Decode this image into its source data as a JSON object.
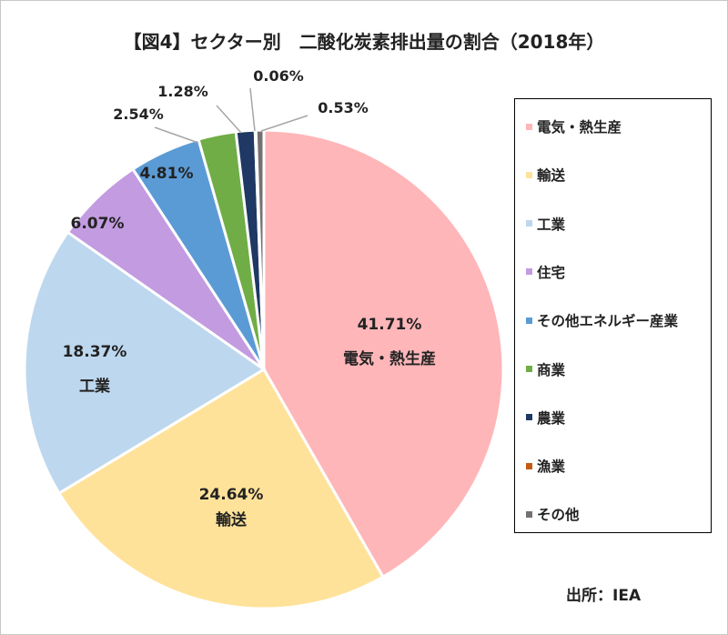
{
  "title": "【図4】セクター別　二酸化炭素排出量の割合（2018年）",
  "source": "出所：IEA",
  "chart_data": {
    "type": "pie",
    "title": "【図4】セクター別　二酸化炭素排出量の割合（2018年）",
    "legend_position": "right",
    "slices": [
      {
        "label": "電気・熱生産",
        "value": 41.71,
        "value_label": "41.71%",
        "color": "#FFB6B9",
        "show_name_on_chart": true
      },
      {
        "label": "輸送",
        "value": 24.64,
        "value_label": "24.64%",
        "color": "#FFE29A",
        "show_name_on_chart": true
      },
      {
        "label": "工業",
        "value": 18.37,
        "value_label": "18.37%",
        "color": "#BDD7EE",
        "show_name_on_chart": true
      },
      {
        "label": "住宅",
        "value": 6.07,
        "value_label": "6.07%",
        "color": "#C39BE0",
        "show_name_on_chart": false
      },
      {
        "label": "その他エネルギー産業",
        "value": 4.81,
        "value_label": "4.81%",
        "color": "#5B9BD5",
        "show_name_on_chart": false
      },
      {
        "label": "商業",
        "value": 2.54,
        "value_label": "2.54%",
        "color": "#70AD47",
        "show_name_on_chart": false
      },
      {
        "label": "農業",
        "value": 1.28,
        "value_label": "1.28%",
        "color": "#1F3864",
        "show_name_on_chart": false
      },
      {
        "label": "漁業",
        "value": 0.06,
        "value_label": "0.06%",
        "color": "#C55A11",
        "show_name_on_chart": false
      },
      {
        "label": "その他",
        "value": 0.53,
        "value_label": "0.53%",
        "color": "#767171",
        "show_name_on_chart": false
      }
    ]
  }
}
